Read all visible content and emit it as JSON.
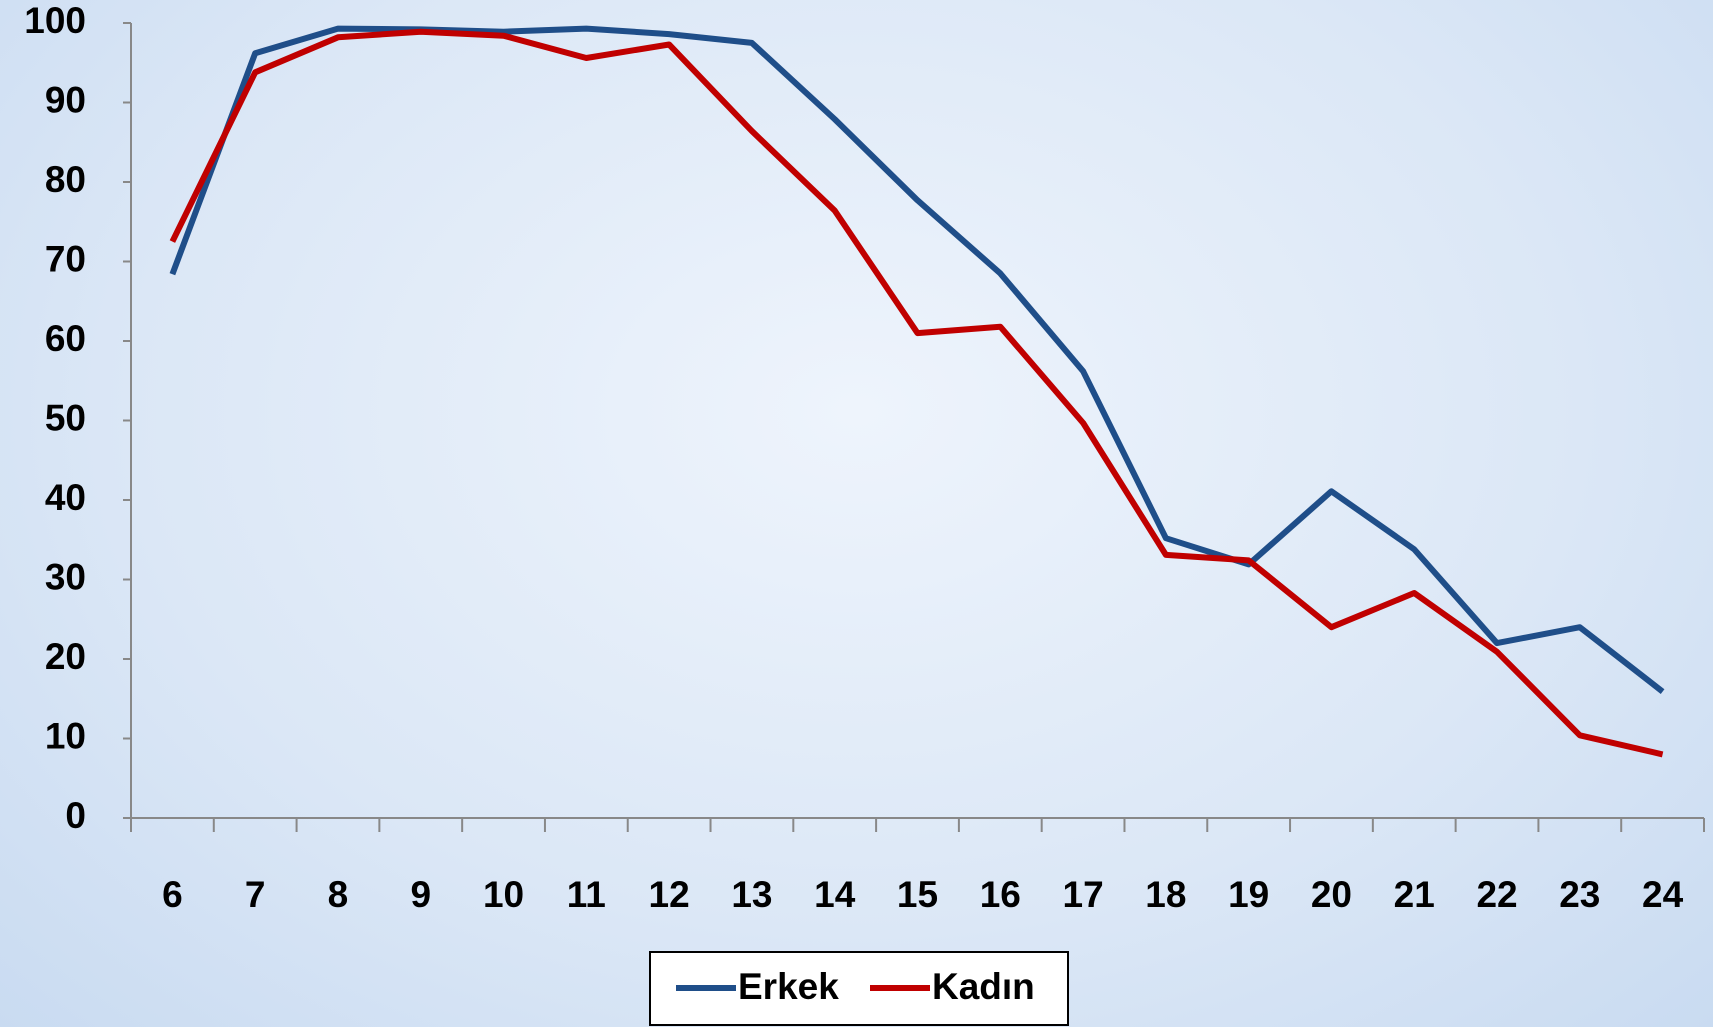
{
  "chart_data": {
    "type": "line",
    "categories": [
      "6",
      "7",
      "8",
      "9",
      "10",
      "11",
      "12",
      "13",
      "14",
      "15",
      "16",
      "17",
      "18",
      "19",
      "20",
      "21",
      "22",
      "23",
      "24"
    ],
    "series": [
      {
        "name": "Erkek",
        "color": "#1f4e89",
        "values": [
          68.4,
          96.2,
          99.3,
          99.2,
          98.9,
          99.3,
          98.6,
          97.5,
          87.9,
          77.7,
          68.5,
          56.2,
          35.2,
          31.9,
          41.1,
          33.8,
          22.0,
          24.0,
          15.9
        ]
      },
      {
        "name": "Kadın",
        "color": "#c00000",
        "values": [
          72.5,
          93.8,
          98.2,
          98.9,
          98.4,
          95.6,
          97.3,
          86.4,
          76.4,
          61.0,
          61.8,
          49.7,
          33.1,
          32.4,
          24.0,
          28.3,
          20.9,
          10.4,
          8.0
        ]
      }
    ],
    "ylim": [
      0,
      100
    ],
    "yticks": [
      0,
      10,
      20,
      30,
      40,
      50,
      60,
      70,
      80,
      90,
      100
    ],
    "grid": false,
    "legend": "bottom"
  }
}
